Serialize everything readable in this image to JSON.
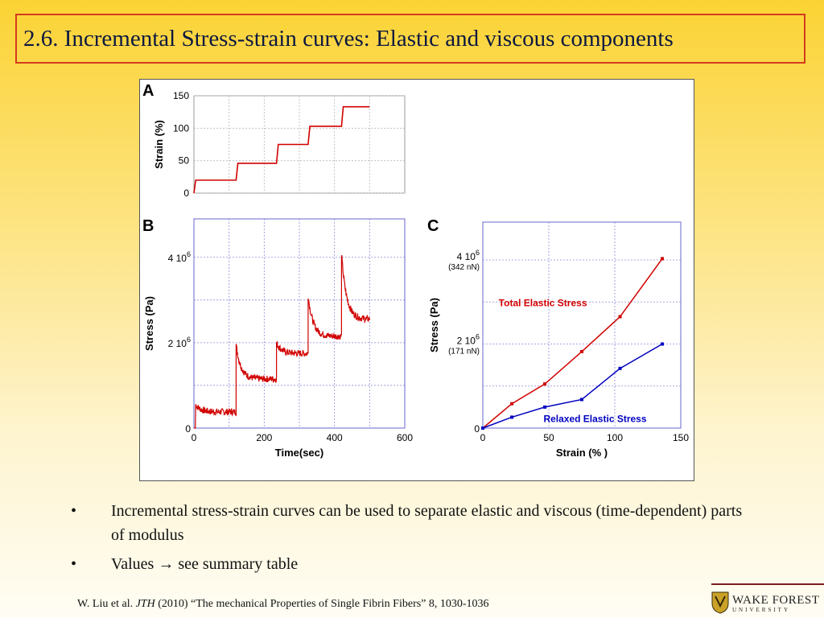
{
  "slide": {
    "title": "2.6. Incremental Stress-strain curves:  Elastic and viscous components",
    "bullets": [
      {
        "marker": "•",
        "text": "Incremental stress-strain curves can be used to separate elastic and viscous (time-dependent) parts of modulus"
      },
      {
        "marker": "•",
        "text": "Values → see summary table"
      }
    ],
    "citation": {
      "prefix": "W. Liu et al. ",
      "journal": "JTH",
      "suffix": " (2010) “The mechanical Properties of Single Fibrin Fibers” 8, 1030-1036"
    },
    "logo": {
      "line1": "WAKE FOREST",
      "line2": "UNIVERSITY"
    }
  },
  "chart_data": [
    {
      "panel": "A",
      "type": "line",
      "ylabel": "Strain (%)",
      "xlabel": "",
      "xlim": [
        0,
        600
      ],
      "ylim": [
        0,
        150
      ],
      "yticks": [
        0,
        50,
        100,
        150
      ],
      "ytick_labels": [
        "0",
        "50",
        "100",
        "150"
      ],
      "grid": true,
      "color": "#d10000",
      "series": [
        {
          "x": [
            0,
            5,
            10,
            120,
            125,
            235,
            240,
            325,
            330,
            420,
            425,
            500
          ],
          "y": [
            0,
            20,
            20,
            20,
            46,
            46,
            75,
            75,
            103,
            103,
            133,
            133
          ]
        }
      ]
    },
    {
      "panel": "B",
      "type": "line",
      "xlabel": "Time(sec)",
      "ylabel": "Stress (Pa)",
      "xlim": [
        0,
        600
      ],
      "ylim": [
        0,
        4900000
      ],
      "xticks": [
        0,
        200,
        400,
        600
      ],
      "xtick_labels": [
        "0",
        "200",
        "400",
        "600"
      ],
      "yticks": [
        0,
        2000000,
        4000000
      ],
      "ytick_labels": [
        {
          "base": "0",
          "exp": ""
        },
        {
          "base": "2 10",
          "exp": "6"
        },
        {
          "base": "4 10",
          "exp": "6"
        }
      ],
      "grid": true,
      "color": "#d10000",
      "steps": [
        {
          "t0": 5,
          "t1": 120,
          "peak": 550000,
          "plateau": 380000
        },
        {
          "t0": 120,
          "t1": 235,
          "peak": 1950000,
          "plateau": 1150000
        },
        {
          "t0": 235,
          "t1": 325,
          "peak": 2000000,
          "plateau": 1750000
        },
        {
          "t0": 325,
          "t1": 420,
          "peak": 3100000,
          "plateau": 2150000
        },
        {
          "t0": 420,
          "t1": 500,
          "peak": 4080000,
          "plateau": 2550000
        }
      ]
    },
    {
      "panel": "C",
      "type": "line",
      "xlabel": "Strain (% )",
      "ylabel": "Stress (Pa)",
      "xlim": [
        0,
        150
      ],
      "ylim": [
        0,
        4900000
      ],
      "xticks": [
        0,
        50,
        100,
        150
      ],
      "xtick_labels": [
        "0",
        "50",
        "100",
        "150"
      ],
      "yticks": [
        0,
        2000000,
        4000000
      ],
      "ytick_labels": [
        {
          "base": "0",
          "exp": "",
          "note": ""
        },
        {
          "base": "2 10",
          "exp": "6",
          "note": "(171 nN)"
        },
        {
          "base": "4 10",
          "exp": "6",
          "note": "(342 nN)"
        }
      ],
      "grid": true,
      "series": [
        {
          "name": "Total Elastic Stress",
          "color": "#d10000",
          "x": [
            0,
            22,
            47,
            75,
            104,
            136
          ],
          "y": [
            0,
            580000,
            1050000,
            1820000,
            2650000,
            4030000
          ]
        },
        {
          "name": "Relaxed Elastic Stress",
          "color": "#0000c0",
          "x": [
            0,
            22,
            47,
            75,
            104,
            136
          ],
          "y": [
            0,
            260000,
            500000,
            680000,
            1420000,
            2000000
          ]
        }
      ]
    }
  ]
}
